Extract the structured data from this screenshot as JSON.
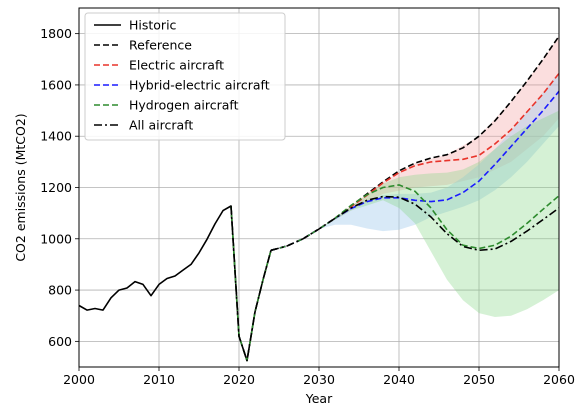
{
  "chart_data": {
    "type": "line",
    "title": "",
    "xlabel": "Year",
    "ylabel": "CO2 emissions (MtCO2)",
    "xlim": [
      2000,
      2060
    ],
    "ylim": [
      500,
      1900
    ],
    "xticks": [
      2000,
      2010,
      2020,
      2030,
      2040,
      2050,
      2060
    ],
    "yticks": [
      600,
      800,
      1000,
      1200,
      1400,
      1600,
      1800
    ],
    "grid": true,
    "legend_position": "upper left",
    "series": [
      {
        "name": "Historic",
        "color": "#000000",
        "dash": "solid",
        "x": [
          2000,
          2001,
          2002,
          2003,
          2004,
          2005,
          2006,
          2007,
          2008,
          2009,
          2010,
          2011,
          2012,
          2013,
          2014,
          2015,
          2016,
          2017,
          2018,
          2019,
          2020,
          2021,
          2022,
          2023,
          2024
        ],
        "y": [
          740,
          722,
          728,
          722,
          770,
          800,
          808,
          833,
          822,
          778,
          822,
          845,
          855,
          878,
          900,
          945,
          998,
          1058,
          1110,
          1128,
          620,
          525,
          715,
          840,
          955
        ]
      },
      {
        "name": "Reference",
        "color": "#000000",
        "dash": "dashed",
        "x": [
          2024,
          2026,
          2028,
          2030,
          2032,
          2034,
          2036,
          2038,
          2040,
          2042,
          2044,
          2046,
          2048,
          2050,
          2052,
          2054,
          2056,
          2058,
          2060
        ],
        "y": [
          955,
          972,
          1000,
          1038,
          1080,
          1128,
          1175,
          1222,
          1265,
          1295,
          1315,
          1328,
          1355,
          1400,
          1460,
          1535,
          1615,
          1700,
          1790
        ]
      },
      {
        "name": "Electric aircraft",
        "color": "#e8332a",
        "dash": "dashed",
        "x": [
          2024,
          2026,
          2028,
          2030,
          2032,
          2034,
          2036,
          2038,
          2040,
          2042,
          2044,
          2046,
          2048,
          2050,
          2052,
          2054,
          2056,
          2058,
          2060
        ],
        "y": [
          955,
          972,
          1000,
          1038,
          1080,
          1125,
          1170,
          1218,
          1258,
          1285,
          1300,
          1305,
          1310,
          1325,
          1370,
          1425,
          1495,
          1565,
          1645
        ]
      },
      {
        "name": "Hybrid-electric aircraft",
        "color": "#1a1aff",
        "dash": "dashed",
        "x": [
          2024,
          2026,
          2028,
          2030,
          2032,
          2034,
          2036,
          2038,
          2040,
          2042,
          2044,
          2046,
          2048,
          2050,
          2052,
          2054,
          2056,
          2058,
          2060
        ],
        "y": [
          955,
          972,
          1000,
          1038,
          1080,
          1118,
          1145,
          1160,
          1160,
          1150,
          1145,
          1152,
          1180,
          1225,
          1290,
          1360,
          1430,
          1500,
          1575
        ]
      },
      {
        "name": "Hydrogen aircraft",
        "color": "#2e8b2e",
        "dash": "dashed",
        "x": [
          2024,
          2026,
          2028,
          2030,
          2032,
          2034,
          2036,
          2038,
          2040,
          2042,
          2044,
          2046,
          2048,
          2050,
          2052,
          2054,
          2056,
          2058,
          2060
        ],
        "y": [
          955,
          972,
          1000,
          1038,
          1080,
          1130,
          1172,
          1200,
          1210,
          1185,
          1120,
          1035,
          975,
          962,
          975,
          1010,
          1060,
          1115,
          1168
        ]
      },
      {
        "name": "All aircraft",
        "color": "#000000",
        "dash": "dashdot",
        "x": [
          2024,
          2026,
          2028,
          2030,
          2032,
          2034,
          2036,
          2038,
          2040,
          2042,
          2044,
          2046,
          2048,
          2050,
          2052,
          2054,
          2056,
          2058,
          2060
        ],
        "y": [
          955,
          972,
          1000,
          1038,
          1080,
          1120,
          1150,
          1165,
          1162,
          1135,
          1085,
          1020,
          970,
          955,
          960,
          990,
          1030,
          1075,
          1120
        ]
      }
    ],
    "pre_2024_overlays": [
      {
        "color": "#2e8b2e",
        "dash": "dashed",
        "x": [
          2019,
          2020,
          2021,
          2022,
          2023,
          2024
        ],
        "y": [
          1128,
          620,
          525,
          715,
          840,
          955
        ]
      },
      {
        "color": "#000000",
        "dash": "dashdot",
        "x": [
          2019,
          2020,
          2021,
          2022,
          2023,
          2024
        ],
        "y": [
          1128,
          620,
          525,
          715,
          840,
          955
        ]
      }
    ],
    "bands": [
      {
        "color": "#f4a0a0",
        "opacity": 0.35,
        "x": [
          2030,
          2034,
          2038,
          2042,
          2046,
          2050,
          2054,
          2058,
          2060
        ],
        "upper": [
          1038,
          1128,
          1222,
          1295,
          1328,
          1400,
          1535,
          1700,
          1790
        ],
        "lower": [
          1038,
          1110,
          1175,
          1200,
          1210,
          1240,
          1300,
          1400,
          1470
        ]
      },
      {
        "color": "#a8cfee",
        "opacity": 0.45,
        "x": [
          2030,
          2032,
          2034,
          2036,
          2038,
          2040,
          2042,
          2044,
          2046,
          2048,
          2050,
          2052,
          2054,
          2056,
          2058,
          2060
        ],
        "upper": [
          1038,
          1080,
          1118,
          1150,
          1170,
          1175,
          1175,
          1180,
          1200,
          1240,
          1290,
          1350,
          1420,
          1495,
          1570,
          1650
        ],
        "lower": [
          1038,
          1055,
          1055,
          1040,
          1030,
          1035,
          1055,
          1085,
          1105,
          1125,
          1150,
          1190,
          1240,
          1300,
          1370,
          1440
        ]
      },
      {
        "color": "#7fd37f",
        "opacity": 0.33,
        "x": [
          2030,
          2034,
          2038,
          2040,
          2042,
          2044,
          2046,
          2048,
          2050,
          2052,
          2054,
          2056,
          2058,
          2060
        ],
        "upper": [
          1038,
          1128,
          1215,
          1240,
          1250,
          1255,
          1258,
          1270,
          1300,
          1350,
          1400,
          1440,
          1470,
          1500
        ],
        "lower": [
          1038,
          1110,
          1150,
          1120,
          1060,
          950,
          840,
          760,
          710,
          695,
          700,
          725,
          760,
          800
        ]
      }
    ]
  }
}
